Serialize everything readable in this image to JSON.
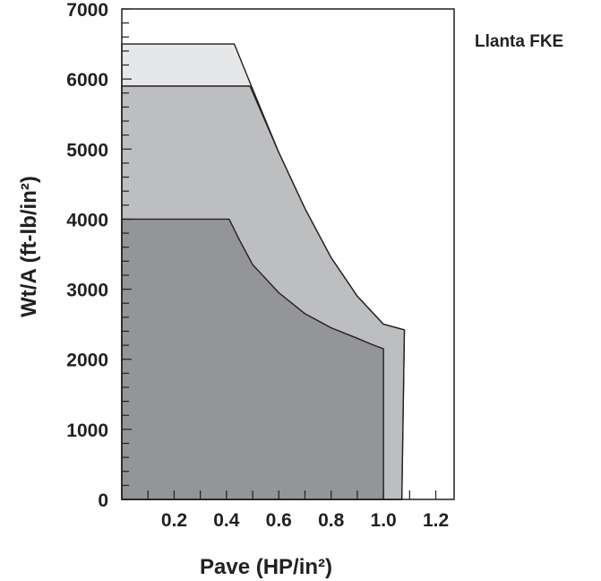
{
  "chart_data": {
    "type": "area",
    "title": "",
    "legend_label": "Llanta FKE",
    "xlabel": "Pave (HP/in²)",
    "ylabel": "Wt/A (ft-lb/in²)",
    "xlim": [
      0,
      1.27
    ],
    "ylim": [
      0,
      7000
    ],
    "x_ticks": [
      "0.2",
      "0.4",
      "0.6",
      "0.8",
      "1.0",
      "1.2"
    ],
    "y_ticks": [
      "0",
      "1000",
      "2000",
      "3000",
      "4000",
      "5000",
      "6000",
      "7000"
    ],
    "grid": false,
    "fill_colors": [
      "#e6e7e8",
      "#bcbec0",
      "#939598"
    ],
    "series": [
      {
        "x": [
          0,
          0.43,
          0.49,
          0.6,
          0.7,
          0.8,
          0.9,
          1.0,
          1.08,
          1.07,
          0
        ],
        "y": [
          6500,
          6500,
          5950,
          4950,
          4150,
          3450,
          2900,
          2500,
          2420,
          0,
          0
        ]
      },
      {
        "x": [
          0,
          0.49,
          0.6,
          0.7,
          0.8,
          0.9,
          1.0,
          1.08,
          1.07,
          0
        ],
        "y": [
          5900,
          5900,
          4950,
          4150,
          3450,
          2900,
          2500,
          2420,
          0,
          0
        ]
      },
      {
        "x": [
          0,
          0.41,
          0.45,
          0.5,
          0.6,
          0.7,
          0.8,
          0.9,
          0.95,
          1.0,
          1.0,
          0
        ],
        "y": [
          4000,
          4000,
          3700,
          3350,
          2950,
          2650,
          2450,
          2300,
          2220,
          2150,
          0,
          0
        ]
      }
    ]
  }
}
